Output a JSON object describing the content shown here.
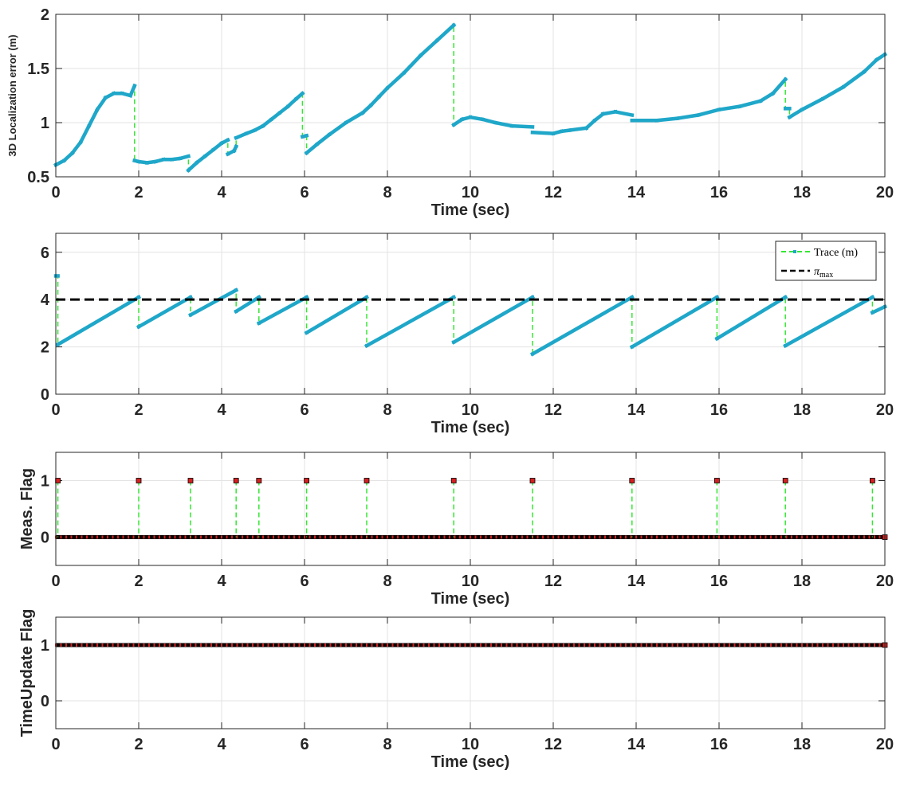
{
  "colors": {
    "trace_marker": "#1fa7c9",
    "trace_line": "#33e833",
    "threshold": "#000000",
    "flag_marker": "#d62020",
    "flag_line": "#33e833",
    "grid": "#e3e3e3",
    "axis": "#262626"
  },
  "legend": {
    "trace_label": "Trace (m)",
    "pi_symbol": "π",
    "pi_subscript": "max"
  },
  "chart_data": [
    {
      "type": "line",
      "xlabel": "Time (sec)",
      "ylabel": "3D Localization error (m)",
      "xlim": [
        0,
        20
      ],
      "ylim": [
        0.5,
        2
      ],
      "xticks": [
        "0",
        "2",
        "4",
        "6",
        "8",
        "10",
        "12",
        "14",
        "16",
        "18",
        "20"
      ],
      "yticks": [
        "0.5",
        "1",
        "1.5",
        "2"
      ],
      "grid": true,
      "series": [
        {
          "x": [
            0,
            0.2,
            0.4,
            0.6,
            0.8,
            1.0,
            1.2,
            1.4,
            1.6,
            1.8,
            1.9,
            1.9,
            2.0,
            2.2,
            2.4,
            2.6,
            2.8,
            3.0,
            3.2,
            3.2,
            3.4,
            3.6,
            3.8,
            4.0,
            4.15,
            4.15,
            4.3,
            4.35,
            4.35,
            4.6,
            4.8,
            5.0,
            5.2,
            5.4,
            5.6,
            5.8,
            5.95,
            5.95,
            6.05,
            6.05,
            6.3,
            6.6,
            7.0,
            7.4,
            7.6,
            7.8,
            8.0,
            8.4,
            8.8,
            9.2,
            9.6,
            9.6,
            9.8,
            10.0,
            10.3,
            10.6,
            11.0,
            11.5,
            11.5,
            12.0,
            12.2,
            12.4,
            12.8,
            13.0,
            13.2,
            13.5,
            13.9,
            13.9,
            14.5,
            15.0,
            15.5,
            16.0,
            16.5,
            17.0,
            17.3,
            17.6,
            17.6,
            17.7,
            17.7,
            18.0,
            18.5,
            19.0,
            19.5,
            19.8,
            20.0
          ],
          "y": [
            0.61,
            0.65,
            0.72,
            0.82,
            0.97,
            1.12,
            1.23,
            1.27,
            1.27,
            1.25,
            1.34,
            0.65,
            0.64,
            0.63,
            0.64,
            0.66,
            0.66,
            0.67,
            0.69,
            0.56,
            0.63,
            0.69,
            0.75,
            0.81,
            0.84,
            0.71,
            0.74,
            0.78,
            0.86,
            0.9,
            0.93,
            0.97,
            1.03,
            1.09,
            1.15,
            1.22,
            1.27,
            0.87,
            0.88,
            0.72,
            0.8,
            0.89,
            1.0,
            1.09,
            1.16,
            1.24,
            1.32,
            1.46,
            1.62,
            1.76,
            1.9,
            0.98,
            1.03,
            1.05,
            1.03,
            1.0,
            0.97,
            0.96,
            0.91,
            0.9,
            0.92,
            0.93,
            0.95,
            1.02,
            1.08,
            1.1,
            1.07,
            1.02,
            1.02,
            1.04,
            1.07,
            1.12,
            1.15,
            1.2,
            1.27,
            1.4,
            1.13,
            1.13,
            1.05,
            1.12,
            1.22,
            1.33,
            1.47,
            1.58,
            1.63
          ]
        }
      ]
    },
    {
      "type": "line",
      "xlabel": "Time (sec)",
      "ylabel": "",
      "xlim": [
        0,
        20
      ],
      "ylim": [
        0,
        6.8
      ],
      "xticks": [
        "0",
        "2",
        "4",
        "6",
        "8",
        "10",
        "12",
        "14",
        "16",
        "18",
        "20"
      ],
      "yticks": [
        "0",
        "2",
        "4",
        "6"
      ],
      "grid": true,
      "legend_position": "top-right",
      "threshold": 4,
      "series": [
        {
          "name": "Trace (m)",
          "x": [
            0,
            0.05,
            0.05,
            2.0,
            2.0,
            3.25,
            3.25,
            4.35,
            4.35,
            4.9,
            4.9,
            6.05,
            6.05,
            7.5,
            7.5,
            9.6,
            9.6,
            11.5,
            11.5,
            13.9,
            13.9,
            15.95,
            15.95,
            17.6,
            17.6,
            19.7,
            19.7,
            20.0
          ],
          "y": [
            5.0,
            5.0,
            2.1,
            4.1,
            2.85,
            4.1,
            3.35,
            4.4,
            3.5,
            4.1,
            3.0,
            4.1,
            2.6,
            4.1,
            2.05,
            4.1,
            2.2,
            4.1,
            1.7,
            4.1,
            2.0,
            4.1,
            2.35,
            4.1,
            2.05,
            4.1,
            3.45,
            3.7
          ]
        }
      ]
    },
    {
      "type": "scatter",
      "xlabel": "Time (sec)",
      "ylabel": "Meas. Flag",
      "xlim": [
        0,
        20
      ],
      "ylim": [
        -0.5,
        1.5
      ],
      "xticks": [
        "0",
        "2",
        "4",
        "6",
        "8",
        "10",
        "12",
        "14",
        "16",
        "18",
        "20"
      ],
      "yticks": [
        "0",
        "1"
      ],
      "grid": true,
      "baseline": 0,
      "series": [
        {
          "x": [
            0.05,
            2.0,
            3.25,
            4.35,
            4.9,
            6.05,
            7.5,
            9.6,
            11.5,
            13.9,
            15.95,
            17.6,
            19.7
          ],
          "y": [
            1,
            1,
            1,
            1,
            1,
            1,
            1,
            1,
            1,
            1,
            1,
            1,
            1
          ]
        }
      ]
    },
    {
      "type": "scatter",
      "xlabel": "Time (sec)",
      "ylabel": "TimeUpdate Flag",
      "xlim": [
        0,
        20
      ],
      "ylim": [
        -0.5,
        1.5
      ],
      "xticks": [
        "0",
        "2",
        "4",
        "6",
        "8",
        "10",
        "12",
        "14",
        "16",
        "18",
        "20"
      ],
      "yticks": [
        "0",
        "1"
      ],
      "grid": true,
      "baseline": 1,
      "series": []
    }
  ]
}
